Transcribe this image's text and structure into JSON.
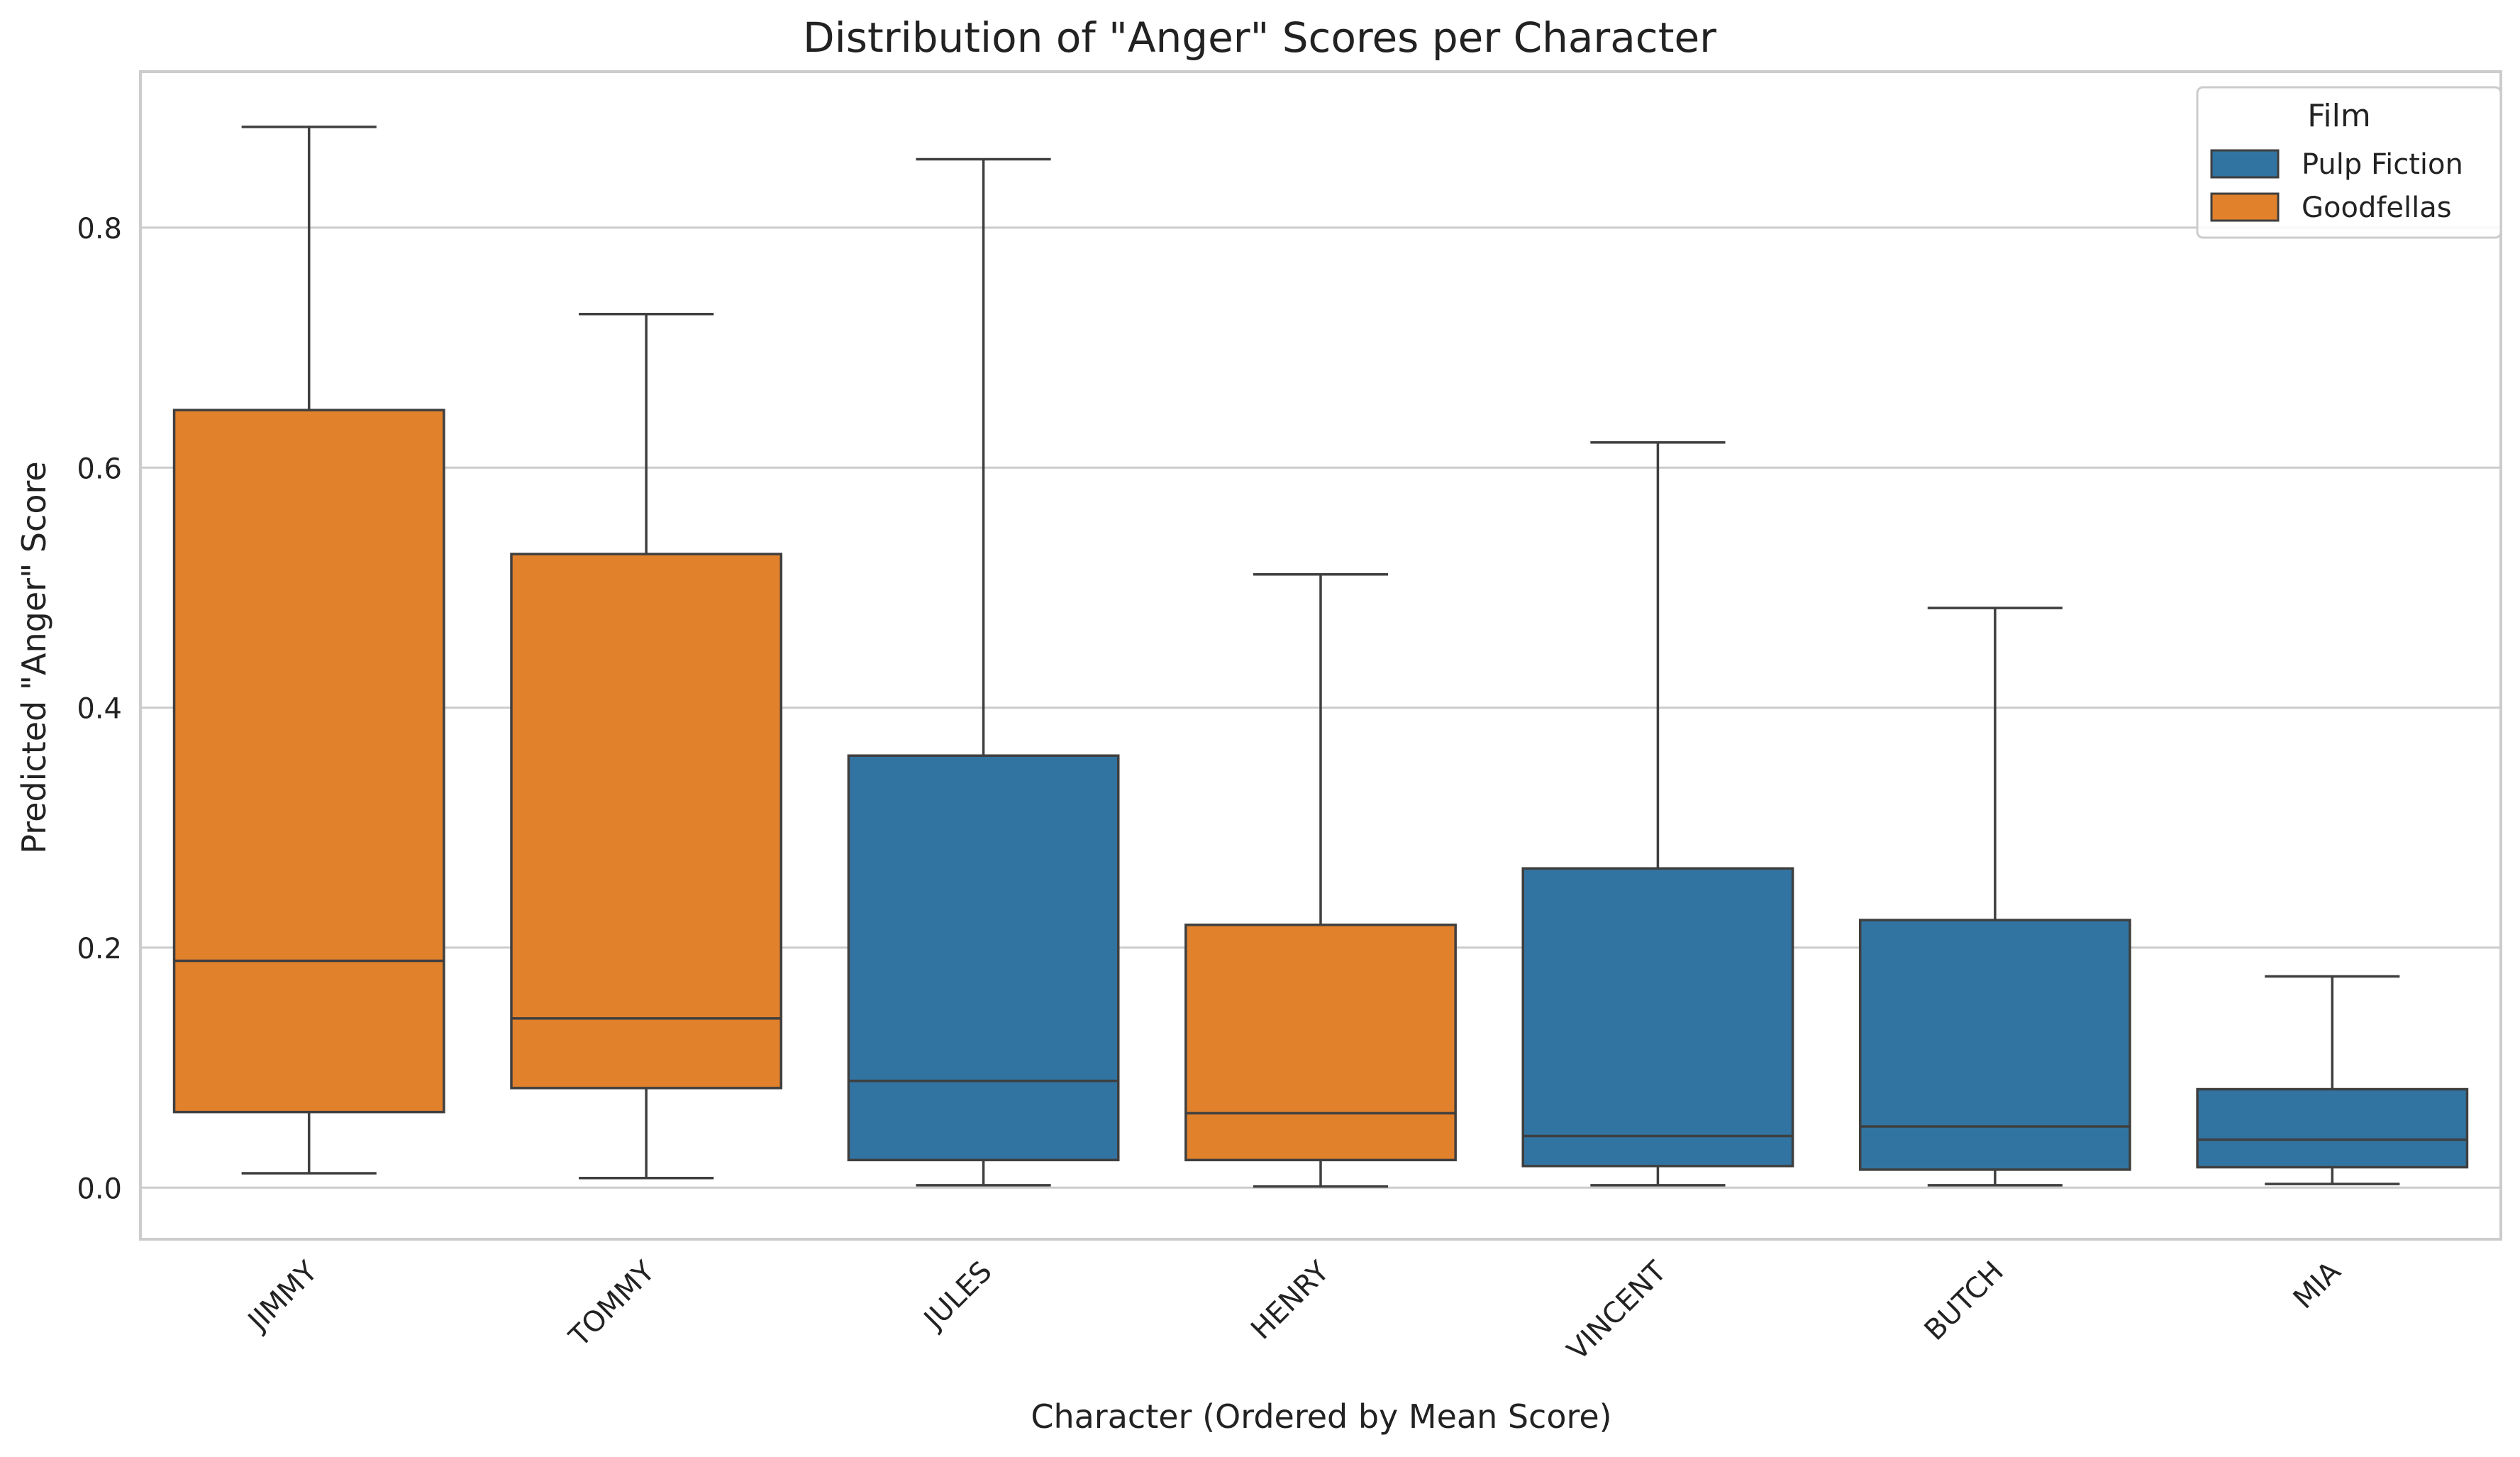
{
  "chart_data": {
    "type": "box",
    "title": "Distribution of \"Anger\" Scores per Character",
    "xlabel": "Character (Ordered by Mean Score)",
    "ylabel": "Predicted \"Anger\" Score",
    "ylim": [
      -0.043,
      0.93
    ],
    "yticks": [
      0.0,
      0.2,
      0.4,
      0.6,
      0.8
    ],
    "ytick_labels": [
      "0.0",
      "0.2",
      "0.4",
      "0.6",
      "0.8"
    ],
    "grid": "horizontal",
    "legend": {
      "title": "Film",
      "placement": "top-right",
      "entries": [
        {
          "label": "Pulp Fiction",
          "color": "#3274a1"
        },
        {
          "label": "Goodfellas",
          "color": "#e1812c"
        }
      ]
    },
    "categories": [
      "JIMMY",
      "TOMMY",
      "JULES",
      "HENRY",
      "VINCENT",
      "BUTCH",
      "MIA"
    ],
    "boxes": [
      {
        "film": "Goodfellas",
        "whisker_low": 0.012,
        "q1": 0.063,
        "median": 0.189,
        "q3": 0.648,
        "whisker_high": 0.884
      },
      {
        "film": "Goodfellas",
        "whisker_low": 0.008,
        "q1": 0.083,
        "median": 0.141,
        "q3": 0.528,
        "whisker_high": 0.728
      },
      {
        "film": "Pulp Fiction",
        "whisker_low": 0.002,
        "q1": 0.023,
        "median": 0.089,
        "q3": 0.36,
        "whisker_high": 0.857
      },
      {
        "film": "Goodfellas",
        "whisker_low": 0.001,
        "q1": 0.023,
        "median": 0.062,
        "q3": 0.219,
        "whisker_high": 0.511
      },
      {
        "film": "Pulp Fiction",
        "whisker_low": 0.002,
        "q1": 0.018,
        "median": 0.043,
        "q3": 0.266,
        "whisker_high": 0.621
      },
      {
        "film": "Pulp Fiction",
        "whisker_low": 0.002,
        "q1": 0.015,
        "median": 0.051,
        "q3": 0.223,
        "whisker_high": 0.483
      },
      {
        "film": "Pulp Fiction",
        "whisker_low": 0.003,
        "q1": 0.017,
        "median": 0.04,
        "q3": 0.082,
        "whisker_high": 0.176
      }
    ]
  }
}
